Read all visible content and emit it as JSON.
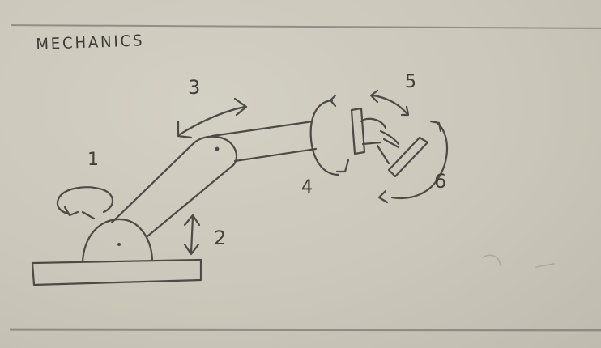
{
  "heading": "MECHANICS",
  "labels": {
    "joint_1": "1",
    "joint_2": "2",
    "joint_3": "3",
    "joint_4": "4",
    "joint_5": "5",
    "joint_6": "6"
  },
  "colors": {
    "paper": "#cbc7ba",
    "pencil": "#4b4a46",
    "rule_line": "#7c7a72"
  }
}
